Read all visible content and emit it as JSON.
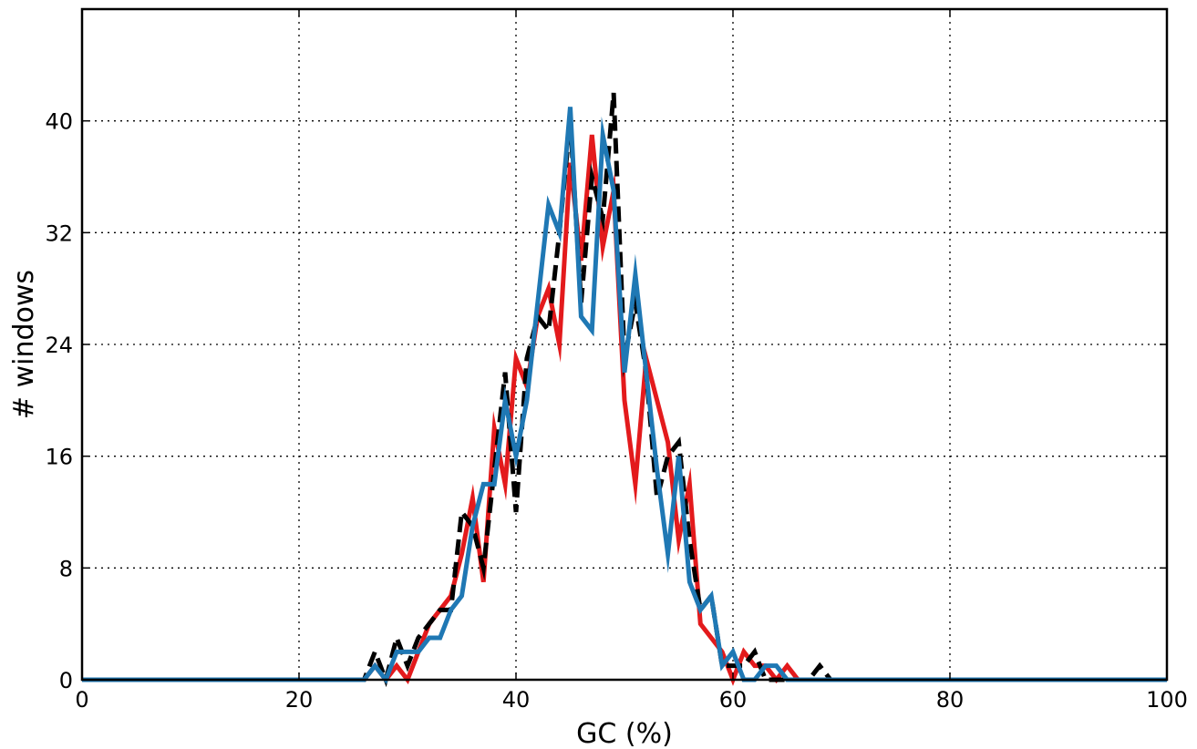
{
  "chart_data": {
    "type": "line",
    "title": "",
    "xlabel": "GC (%)",
    "ylabel": "# windows",
    "xlim": [
      0,
      100
    ],
    "ylim": [
      0,
      48
    ],
    "xticks": [
      0,
      20,
      40,
      60,
      80,
      100
    ],
    "yticks": [
      0,
      8,
      16,
      24,
      32,
      40
    ],
    "grid": true,
    "grid_style": "dotted",
    "x": [
      0,
      1,
      2,
      3,
      4,
      5,
      6,
      7,
      8,
      9,
      10,
      11,
      12,
      13,
      14,
      15,
      16,
      17,
      18,
      19,
      20,
      21,
      22,
      23,
      24,
      25,
      26,
      27,
      28,
      29,
      30,
      31,
      32,
      33,
      34,
      35,
      36,
      37,
      38,
      39,
      40,
      41,
      42,
      43,
      44,
      45,
      46,
      47,
      48,
      49,
      50,
      51,
      52,
      53,
      54,
      55,
      56,
      57,
      58,
      59,
      60,
      61,
      62,
      63,
      64,
      65,
      66,
      67,
      68,
      69,
      70,
      71,
      72,
      73,
      74,
      75,
      76,
      77,
      78,
      79,
      80,
      81,
      82,
      83,
      84,
      85,
      86,
      87,
      88,
      89,
      90,
      91,
      92,
      93,
      94,
      95,
      96,
      97,
      98,
      99,
      100
    ],
    "series": [
      {
        "color": "#e31a1c",
        "style": "solid",
        "values": [
          0,
          0,
          0,
          0,
          0,
          0,
          0,
          0,
          0,
          0,
          0,
          0,
          0,
          0,
          0,
          0,
          0,
          0,
          0,
          0,
          0,
          0,
          0,
          0,
          0,
          0,
          0,
          1,
          0,
          1,
          0,
          2,
          4,
          5,
          6,
          9,
          13,
          7,
          18,
          14,
          23,
          21,
          26,
          28,
          24,
          37,
          30,
          39,
          31,
          35,
          20,
          14,
          23,
          20,
          17,
          10,
          14,
          4,
          3,
          2,
          0,
          2,
          1,
          1,
          0,
          1,
          0,
          0,
          0,
          0,
          0,
          0,
          0,
          0,
          0,
          0,
          0,
          0,
          0,
          0,
          0,
          0,
          0,
          0,
          0,
          0,
          0,
          0,
          0,
          0,
          0,
          0,
          0,
          0,
          0,
          0,
          0,
          0,
          0,
          0,
          0
        ]
      },
      {
        "color": "#000000",
        "style": "dashed",
        "values": [
          0,
          0,
          0,
          0,
          0,
          0,
          0,
          0,
          0,
          0,
          0,
          0,
          0,
          0,
          0,
          0,
          0,
          0,
          0,
          0,
          0,
          0,
          0,
          0,
          0,
          0,
          0,
          2,
          0,
          3,
          1,
          3,
          4,
          5,
          5,
          12,
          11,
          8,
          15,
          22,
          12,
          23,
          26,
          25,
          32,
          40,
          27,
          36,
          33,
          42,
          23,
          27,
          22,
          13,
          16,
          17,
          10,
          5,
          6,
          1,
          1,
          1,
          2,
          0,
          0,
          0,
          0,
          0,
          1,
          0,
          0,
          0,
          0,
          0,
          0,
          0,
          0,
          0,
          0,
          0,
          0,
          0,
          0,
          0,
          0,
          0,
          0,
          0,
          0,
          0,
          0,
          0,
          0,
          0,
          0,
          0,
          0,
          0,
          0,
          0,
          0
        ]
      },
      {
        "color": "#1f78b4",
        "style": "solid",
        "values": [
          0,
          0,
          0,
          0,
          0,
          0,
          0,
          0,
          0,
          0,
          0,
          0,
          0,
          0,
          0,
          0,
          0,
          0,
          0,
          0,
          0,
          0,
          0,
          0,
          0,
          0,
          0,
          1,
          0,
          2,
          2,
          2,
          3,
          3,
          5,
          6,
          11,
          14,
          14,
          20,
          16,
          20,
          27,
          34,
          32,
          41,
          26,
          25,
          39,
          35,
          22,
          29,
          22,
          15,
          9,
          16,
          7,
          5,
          6,
          1,
          2,
          0,
          0,
          1,
          1,
          0,
          0,
          0,
          0,
          0,
          0,
          0,
          0,
          0,
          0,
          0,
          0,
          0,
          0,
          0,
          0,
          0,
          0,
          0,
          0,
          0,
          0,
          0,
          0,
          0,
          0,
          0,
          0,
          0,
          0,
          0,
          0,
          0,
          0,
          0,
          0
        ]
      }
    ]
  }
}
